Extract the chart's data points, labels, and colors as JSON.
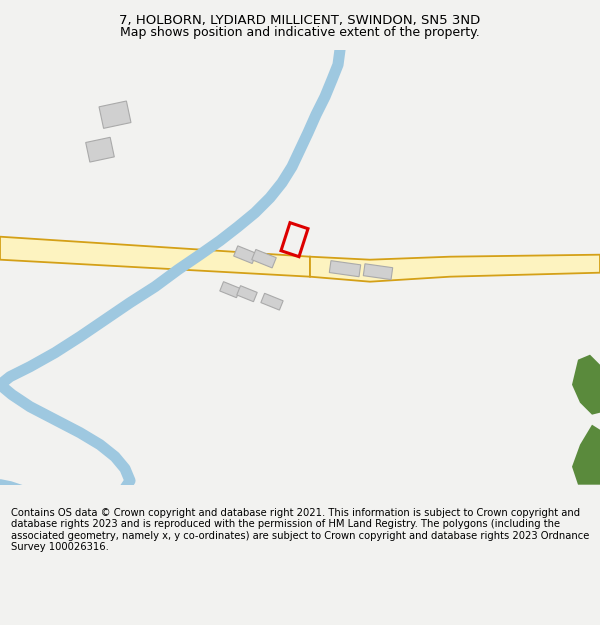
{
  "title_line1": "7, HOLBORN, LYDIARD MILLICENT, SWINDON, SN5 3ND",
  "title_line2": "Map shows position and indicative extent of the property.",
  "footer_text": "Contains OS data © Crown copyright and database right 2021. This information is subject to Crown copyright and database rights 2023 and is reproduced with the permission of HM Land Registry. The polygons (including the associated geometry, namely x, y co-ordinates) are subject to Crown copyright and database rights 2023 Ordnance Survey 100026316.",
  "bg_color": "#f2f2f0",
  "map_bg": "#ffffff",
  "road_fill": "#fdf3c0",
  "road_edge": "#d4a017",
  "river_color": "#9ec8e0",
  "building_color": "#d0d0d0",
  "building_edge": "#aaaaaa",
  "red_poly_color": "#dd0000",
  "green_area_color": "#5a8a3c",
  "title_fontsize": 9.5,
  "footer_fontsize": 7.2
}
